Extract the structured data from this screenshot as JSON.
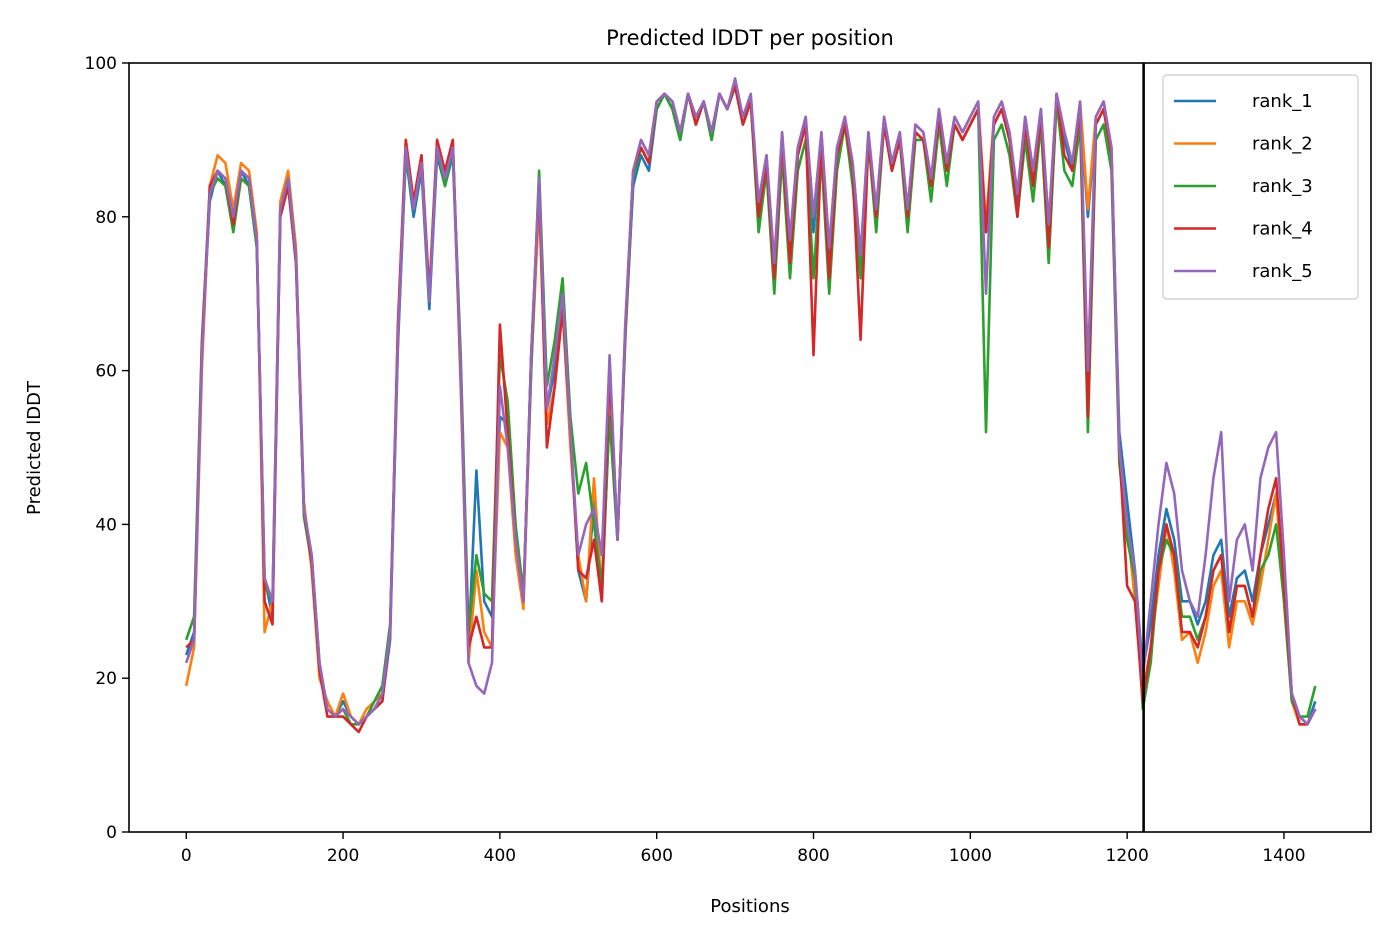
{
  "chart_data": {
    "type": "line",
    "title": "Predicted lDDT per position",
    "xlabel": "Positions",
    "ylabel": "Predicted lDDT",
    "xlim": [
      -73,
      1511
    ],
    "ylim": [
      0,
      100
    ],
    "xticks": [
      0,
      200,
      400,
      600,
      800,
      1000,
      1200,
      1400
    ],
    "yticks": [
      0,
      20,
      40,
      60,
      80,
      100
    ],
    "grid": false,
    "legend_position": "top-right",
    "vertical_line_x": 1221,
    "vertical_line_color": "#000000",
    "x": [
      0,
      10,
      20,
      30,
      40,
      50,
      60,
      70,
      80,
      90,
      100,
      110,
      120,
      130,
      140,
      150,
      160,
      170,
      180,
      190,
      200,
      210,
      220,
      230,
      240,
      250,
      260,
      270,
      280,
      290,
      300,
      310,
      320,
      330,
      340,
      350,
      360,
      370,
      380,
      390,
      400,
      410,
      420,
      430,
      440,
      450,
      460,
      470,
      480,
      490,
      500,
      510,
      520,
      530,
      540,
      550,
      560,
      570,
      580,
      590,
      600,
      610,
      620,
      630,
      640,
      650,
      660,
      670,
      680,
      690,
      700,
      710,
      720,
      730,
      740,
      750,
      760,
      770,
      780,
      790,
      800,
      810,
      820,
      830,
      840,
      850,
      860,
      870,
      880,
      890,
      900,
      910,
      920,
      930,
      940,
      950,
      960,
      970,
      980,
      990,
      1000,
      1010,
      1020,
      1030,
      1040,
      1050,
      1060,
      1070,
      1080,
      1090,
      1100,
      1110,
      1120,
      1130,
      1140,
      1150,
      1160,
      1170,
      1180,
      1190,
      1200,
      1210,
      1220,
      1230,
      1240,
      1250,
      1260,
      1270,
      1280,
      1290,
      1300,
      1310,
      1320,
      1330,
      1340,
      1350,
      1360,
      1370,
      1380,
      1390,
      1400,
      1410,
      1420,
      1430,
      1440
    ],
    "series": [
      {
        "name": "rank_1",
        "color": "#1f77b4",
        "values": [
          23,
          26,
          63,
          82,
          86,
          84,
          79,
          86,
          84,
          76,
          33,
          28,
          80,
          84,
          74,
          42,
          36,
          22,
          16,
          15,
          17,
          15,
          14,
          15,
          16,
          17,
          25,
          63,
          88,
          80,
          86,
          68,
          88,
          84,
          88,
          60,
          24,
          47,
          30,
          28,
          54,
          53,
          38,
          30,
          62,
          84,
          55,
          60,
          70,
          52,
          34,
          30,
          43,
          30,
          55,
          38,
          65,
          84,
          88,
          86,
          94,
          96,
          94,
          90,
          96,
          92,
          95,
          90,
          96,
          94,
          97,
          92,
          95,
          80,
          88,
          72,
          90,
          76,
          88,
          92,
          78,
          90,
          75,
          88,
          92,
          86,
          74,
          90,
          80,
          92,
          86,
          90,
          80,
          91,
          90,
          84,
          93,
          86,
          92,
          90,
          92,
          94,
          78,
          92,
          94,
          90,
          82,
          92,
          85,
          93,
          78,
          96,
          90,
          86,
          94,
          80,
          92,
          94,
          88,
          52,
          43,
          34,
          21,
          27,
          36,
          42,
          38,
          30,
          30,
          27,
          30,
          36,
          38,
          28,
          33,
          34,
          30,
          36,
          40,
          44,
          32,
          18,
          15,
          14,
          17
        ]
      },
      {
        "name": "rank_2",
        "color": "#ff7f0e",
        "values": [
          19,
          24,
          60,
          84,
          88,
          87,
          81,
          87,
          86,
          78,
          26,
          30,
          82,
          86,
          76,
          43,
          34,
          20,
          17,
          15,
          18,
          15,
          14,
          16,
          17,
          18,
          26,
          65,
          90,
          82,
          88,
          70,
          90,
          85,
          90,
          58,
          22,
          34,
          26,
          24,
          52,
          50,
          36,
          29,
          60,
          82,
          53,
          58,
          68,
          50,
          36,
          30,
          46,
          31,
          56,
          38,
          66,
          86,
          90,
          88,
          95,
          96,
          95,
          91,
          96,
          93,
          95,
          91,
          96,
          94,
          97,
          93,
          95,
          82,
          88,
          74,
          91,
          77,
          89,
          93,
          80,
          91,
          76,
          89,
          93,
          87,
          75,
          91,
          81,
          93,
          87,
          91,
          81,
          92,
          91,
          85,
          94,
          87,
          93,
          91,
          93,
          95,
          79,
          93,
          95,
          91,
          83,
          93,
          86,
          94,
          79,
          96,
          91,
          87,
          95,
          81,
          93,
          95,
          89,
          50,
          40,
          30,
          18,
          24,
          32,
          40,
          34,
          25,
          26,
          22,
          26,
          32,
          34,
          24,
          30,
          30,
          27,
          32,
          38,
          44,
          30,
          17,
          14,
          14,
          16
        ]
      },
      {
        "name": "rank_3",
        "color": "#2ca02c",
        "values": [
          25,
          28,
          64,
          83,
          85,
          84,
          78,
          85,
          84,
          76,
          32,
          30,
          81,
          85,
          75,
          41,
          35,
          21,
          16,
          15,
          16,
          14,
          14,
          15,
          17,
          19,
          27,
          64,
          88,
          81,
          87,
          69,
          89,
          84,
          89,
          62,
          26,
          36,
          31,
          30,
          62,
          56,
          40,
          31,
          60,
          86,
          58,
          64,
          72,
          54,
          44,
          48,
          40,
          32,
          54,
          38,
          64,
          85,
          89,
          87,
          94,
          96,
          94,
          90,
          96,
          92,
          95,
          90,
          96,
          94,
          97,
          92,
          95,
          78,
          86,
          70,
          88,
          72,
          86,
          90,
          72,
          88,
          70,
          86,
          92,
          84,
          72,
          90,
          78,
          92,
          86,
          90,
          78,
          90,
          90,
          82,
          92,
          84,
          92,
          90,
          92,
          94,
          52,
          90,
          92,
          88,
          80,
          90,
          82,
          92,
          74,
          95,
          86,
          84,
          92,
          52,
          90,
          92,
          86,
          48,
          38,
          33,
          16,
          22,
          34,
          38,
          36,
          28,
          28,
          25,
          28,
          34,
          36,
          26,
          32,
          32,
          28,
          34,
          36,
          40,
          30,
          17,
          15,
          15,
          19
        ]
      },
      {
        "name": "rank_4",
        "color": "#d62728",
        "values": [
          24,
          25,
          63,
          84,
          86,
          85,
          79,
          86,
          85,
          77,
          30,
          27,
          80,
          84,
          74,
          42,
          35,
          21,
          15,
          15,
          15,
          14,
          13,
          15,
          16,
          17,
          26,
          66,
          90,
          82,
          88,
          70,
          90,
          86,
          90,
          59,
          24,
          28,
          24,
          24,
          66,
          52,
          38,
          30,
          62,
          84,
          50,
          58,
          68,
          52,
          34,
          33,
          38,
          30,
          60,
          38,
          65,
          86,
          89,
          87,
          95,
          96,
          95,
          91,
          96,
          92,
          95,
          91,
          96,
          94,
          97,
          92,
          95,
          80,
          87,
          72,
          90,
          74,
          88,
          92,
          62,
          90,
          72,
          88,
          92,
          86,
          64,
          90,
          80,
          92,
          86,
          90,
          80,
          91,
          90,
          84,
          93,
          86,
          92,
          90,
          92,
          94,
          78,
          92,
          94,
          90,
          80,
          92,
          84,
          93,
          76,
          96,
          88,
          86,
          94,
          54,
          92,
          94,
          88,
          50,
          32,
          30,
          17,
          24,
          34,
          40,
          36,
          26,
          26,
          24,
          28,
          34,
          36,
          26,
          32,
          32,
          28,
          36,
          42,
          46,
          32,
          18,
          14,
          14,
          16
        ]
      },
      {
        "name": "rank_5",
        "color": "#9467bd",
        "values": [
          22,
          25,
          62,
          83,
          86,
          85,
          80,
          86,
          85,
          77,
          33,
          30,
          81,
          85,
          75,
          42,
          36,
          22,
          16,
          15,
          16,
          15,
          14,
          15,
          16,
          18,
          26,
          64,
          89,
          81,
          87,
          69,
          89,
          85,
          89,
          60,
          22,
          19,
          18,
          22,
          58,
          50,
          38,
          30,
          62,
          85,
          55,
          62,
          70,
          52,
          36,
          40,
          42,
          36,
          62,
          38,
          66,
          86,
          90,
          88,
          95,
          96,
          95,
          91,
          96,
          93,
          95,
          91,
          96,
          94,
          98,
          93,
          96,
          82,
          88,
          74,
          91,
          77,
          89,
          93,
          80,
          91,
          76,
          89,
          93,
          87,
          75,
          91,
          81,
          93,
          87,
          91,
          81,
          92,
          91,
          85,
          94,
          87,
          93,
          91,
          93,
          95,
          70,
          93,
          95,
          91,
          83,
          93,
          86,
          94,
          79,
          96,
          91,
          87,
          95,
          60,
          93,
          95,
          89,
          50,
          40,
          34,
          20,
          30,
          40,
          48,
          44,
          34,
          30,
          28,
          36,
          46,
          52,
          30,
          38,
          40,
          34,
          46,
          50,
          52,
          36,
          18,
          15,
          14,
          16
        ]
      }
    ]
  }
}
